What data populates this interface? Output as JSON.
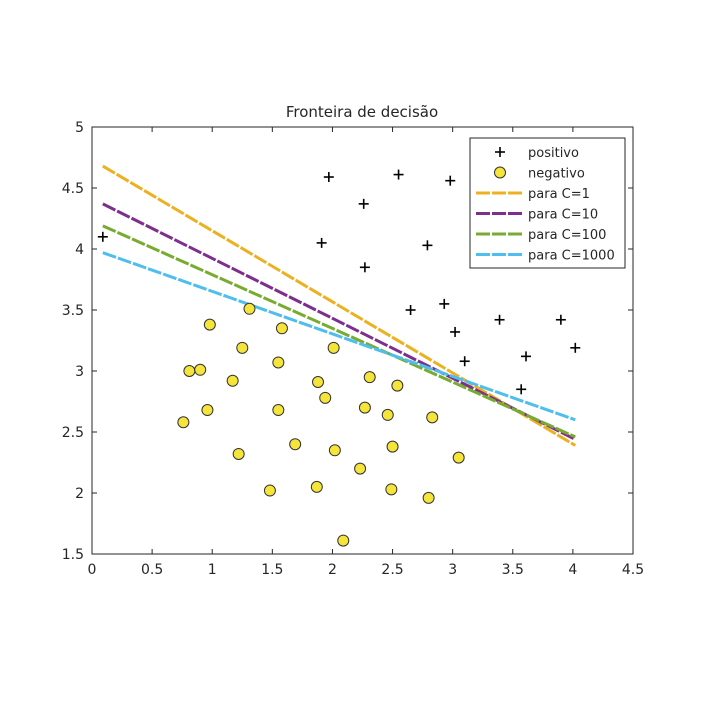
{
  "chart_data": {
    "type": "scatter",
    "title": "Fronteira de decisão",
    "xlabel": "",
    "ylabel": "",
    "xlim": [
      0,
      4.5
    ],
    "ylim": [
      1.5,
      5
    ],
    "xticks": [
      "0",
      "0.5",
      "1",
      "1.5",
      "2",
      "2.5",
      "3",
      "3.5",
      "4",
      "4.5"
    ],
    "yticks": [
      "1.5",
      "2",
      "2.5",
      "3",
      "3.5",
      "4",
      "4.5",
      "5"
    ],
    "grid": false,
    "legend_position": "top-right",
    "legend": [
      "positivo",
      "negativo",
      "para C=1",
      "para C=10",
      "para C=100",
      "para C=1000"
    ],
    "series": [
      {
        "name": "positivo",
        "kind": "scatter",
        "marker": "plus",
        "color": "#000000",
        "points": [
          [
            0.09,
            4.1
          ],
          [
            1.97,
            4.59
          ],
          [
            2.26,
            4.37
          ],
          [
            2.55,
            4.61
          ],
          [
            2.98,
            4.56
          ],
          [
            1.91,
            4.05
          ],
          [
            2.27,
            3.85
          ],
          [
            2.79,
            4.03
          ],
          [
            2.65,
            3.5
          ],
          [
            2.93,
            3.55
          ],
          [
            3.39,
            3.42
          ],
          [
            3.9,
            3.42
          ],
          [
            3.02,
            3.32
          ],
          [
            3.1,
            3.08
          ],
          [
            4.02,
            3.19
          ],
          [
            3.61,
            3.12
          ],
          [
            3.57,
            2.85
          ]
        ]
      },
      {
        "name": "negativo",
        "kind": "scatter",
        "marker": "circle",
        "color": "#f5e43a",
        "points": [
          [
            1.31,
            3.51
          ],
          [
            0.98,
            3.38
          ],
          [
            1.58,
            3.35
          ],
          [
            2.01,
            3.19
          ],
          [
            1.25,
            3.19
          ],
          [
            0.81,
            3.0
          ],
          [
            0.9,
            3.01
          ],
          [
            1.55,
            3.07
          ],
          [
            1.17,
            2.92
          ],
          [
            1.88,
            2.91
          ],
          [
            2.31,
            2.95
          ],
          [
            2.54,
            2.88
          ],
          [
            1.94,
            2.78
          ],
          [
            0.76,
            2.58
          ],
          [
            0.96,
            2.68
          ],
          [
            1.55,
            2.68
          ],
          [
            2.27,
            2.7
          ],
          [
            2.46,
            2.64
          ],
          [
            2.83,
            2.62
          ],
          [
            1.69,
            2.4
          ],
          [
            2.02,
            2.35
          ],
          [
            2.5,
            2.38
          ],
          [
            1.22,
            2.32
          ],
          [
            3.05,
            2.29
          ],
          [
            2.23,
            2.2
          ],
          [
            1.48,
            2.02
          ],
          [
            1.87,
            2.05
          ],
          [
            2.49,
            2.03
          ],
          [
            2.8,
            1.96
          ],
          [
            2.09,
            1.61
          ]
        ]
      },
      {
        "name": "para C=1",
        "kind": "line",
        "color": "#edb120",
        "points": [
          [
            0.09,
            4.68
          ],
          [
            4.02,
            2.39
          ]
        ]
      },
      {
        "name": "para C=10",
        "kind": "line",
        "color": "#7e2f8e",
        "points": [
          [
            0.09,
            4.37
          ],
          [
            4.02,
            2.44
          ]
        ]
      },
      {
        "name": "para C=100",
        "kind": "line",
        "color": "#77ac30",
        "points": [
          [
            0.09,
            4.19
          ],
          [
            4.02,
            2.46
          ]
        ]
      },
      {
        "name": "para C=1000",
        "kind": "line",
        "color": "#4dbeee",
        "points": [
          [
            0.09,
            3.97
          ],
          [
            4.02,
            2.6
          ]
        ]
      }
    ]
  }
}
